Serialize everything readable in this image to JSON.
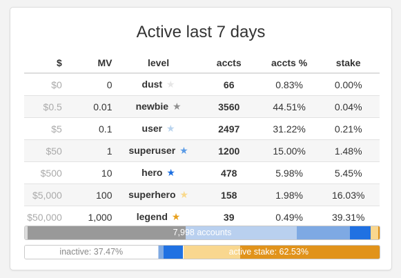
{
  "title": "Active last 7 days",
  "columns": [
    "$",
    "MV",
    "level",
    "accts",
    "accts %",
    "stake"
  ],
  "rows": [
    {
      "dollar": "$0",
      "mv": "0",
      "level": "dust",
      "star_color": "#e6e6e6",
      "accts": "66",
      "accts_pct": "0.83%",
      "stake": "0.00%"
    },
    {
      "dollar": "$0.5",
      "mv": "0.01",
      "level": "newbie",
      "star_color": "#8f8f8f",
      "accts": "3560",
      "accts_pct": "44.51%",
      "stake": "0.04%"
    },
    {
      "dollar": "$5",
      "mv": "0.1",
      "level": "user",
      "star_color": "#b8d3ee",
      "accts": "2497",
      "accts_pct": "31.22%",
      "stake": "0.21%"
    },
    {
      "dollar": "$50",
      "mv": "1",
      "level": "superuser",
      "star_color": "#5a9be6",
      "accts": "1200",
      "accts_pct": "15.00%",
      "stake": "1.48%"
    },
    {
      "dollar": "$500",
      "mv": "10",
      "level": "hero",
      "star_color": "#1d6fe0",
      "accts": "478",
      "accts_pct": "5.98%",
      "stake": "5.45%"
    },
    {
      "dollar": "$5,000",
      "mv": "100",
      "level": "superhero",
      "star_color": "#f9d98c",
      "accts": "158",
      "accts_pct": "1.98%",
      "stake": "16.03%"
    },
    {
      "dollar": "$50,000",
      "mv": "1,000",
      "level": "legend",
      "star_color": "#e8a11e",
      "accts": "39",
      "accts_pct": "0.49%",
      "stake": "39.31%"
    }
  ],
  "accounts_bar": {
    "label": "7,998 accounts",
    "segments": [
      {
        "level": "dust",
        "fraction": 0.0083,
        "color": "#dcdcdc"
      },
      {
        "level": "newbie",
        "fraction": 0.4451,
        "color": "#999999"
      },
      {
        "level": "user",
        "fraction": 0.3122,
        "color": "#b9d0ef"
      },
      {
        "level": "superuser",
        "fraction": 0.15,
        "color": "#7ea9e3"
      },
      {
        "level": "hero",
        "fraction": 0.0598,
        "color": "#2071e2"
      },
      {
        "level": "superhero",
        "fraction": 0.0198,
        "color": "#f9d78f"
      },
      {
        "level": "legend",
        "fraction": 0.0049,
        "color": "#e1931b"
      }
    ]
  },
  "stake_bar": {
    "inactive_label": "inactive: 37.47%",
    "active_label": "active stake: 62.53%",
    "segments": [
      {
        "name": "inactive",
        "fraction": 0.3747,
        "color": "#ffffff"
      },
      {
        "level": "newbie",
        "fraction": 0.0004,
        "color": "#999999"
      },
      {
        "level": "user",
        "fraction": 0.0021,
        "color": "#b9d0ef"
      },
      {
        "level": "superuser",
        "fraction": 0.0148,
        "color": "#7ea9e3"
      },
      {
        "level": "hero",
        "fraction": 0.0545,
        "color": "#2071e2"
      },
      {
        "level": "superhero",
        "fraction": 0.1603,
        "color": "#f9d78f"
      },
      {
        "level": "legend",
        "fraction": 0.3931,
        "color": "#e1931b"
      }
    ]
  }
}
